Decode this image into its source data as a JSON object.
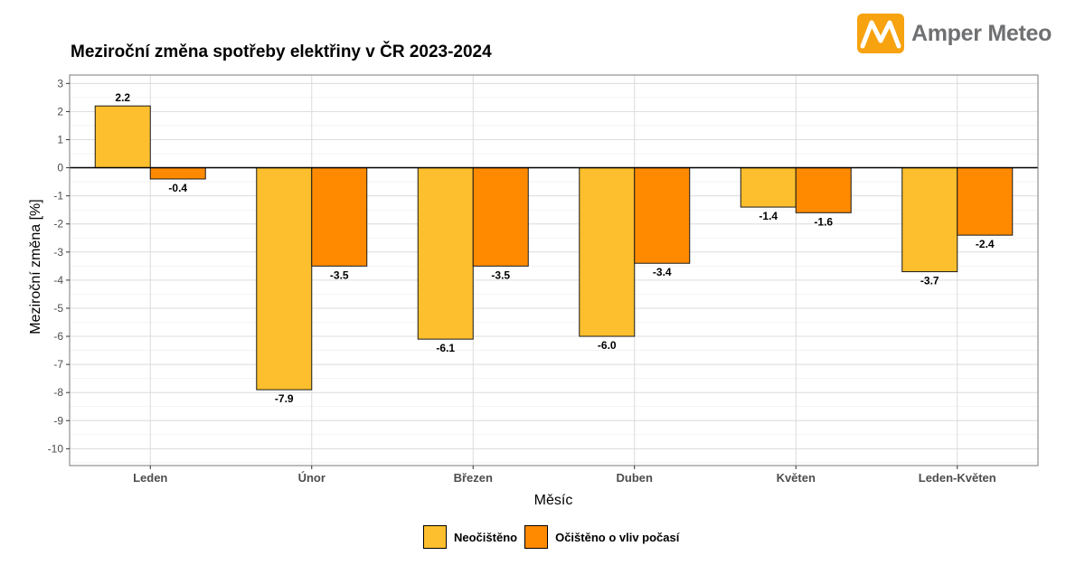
{
  "chart_data": {
    "type": "bar",
    "title": "Meziroční změna spotřeby elektřiny v ČR 2023-2024",
    "xlabel": "Měsíc",
    "ylabel": "Meziroční změna [%]",
    "ylim": [
      -10.6,
      3.3
    ],
    "yticks": [
      3,
      2,
      1,
      0,
      -1,
      -2,
      -3,
      -4,
      -5,
      -6,
      -7,
      -8,
      -9,
      -10
    ],
    "grid": true,
    "legend_position": "bottom",
    "categories": [
      "Leden",
      "Únor",
      "Březen",
      "Duben",
      "Květen",
      "Leden-Květen"
    ],
    "series": [
      {
        "name": "Neočištěno",
        "color": "#fdbf2d",
        "values": [
          2.2,
          -7.9,
          -6.1,
          -6.0,
          -1.4,
          -3.7
        ],
        "labels": [
          "2.2",
          "-7.9",
          "-6.1",
          "-6.0",
          "-1.4",
          "-3.7"
        ]
      },
      {
        "name": "Očištěno o vliv počasí",
        "color": "#ff8a00",
        "values": [
          -0.4,
          -3.5,
          -3.5,
          -3.4,
          -1.6,
          -2.4
        ],
        "labels": [
          "-0.4",
          "-3.5",
          "-3.5",
          "-3.4",
          "-1.6",
          "-2.4"
        ]
      }
    ]
  },
  "brand": {
    "name": "Amper Meteo",
    "color": "#f7a20f",
    "icon": "amper-meteo-logo-icon"
  }
}
